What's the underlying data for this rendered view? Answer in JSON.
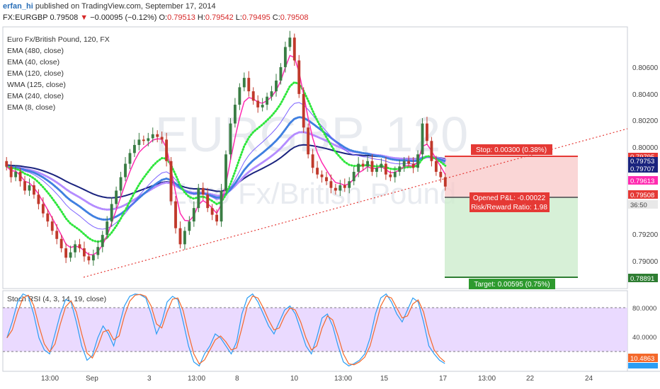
{
  "header": {
    "author": "erfan_hi",
    "published": "published on TradingView.com, September 17, 2014",
    "symbol": "FX:EURGBP",
    "last": "0.79508",
    "arrow": "▼",
    "change": "−0.00095 (−0.12%)",
    "o_label": "O:",
    "o": "0.79513",
    "h_label": "H:",
    "h": "0.79542",
    "l_label": "L:",
    "l": "0.79495",
    "c_label": "C:",
    "c": "0.79508"
  },
  "legend": {
    "title": "Euro Fx/British Pound, 120, FX",
    "items": [
      "EMA (480, close)",
      "EMA (40, close)",
      "EMA (120, close)",
      "WMA (125, close)",
      "EMA (240, close)",
      "EMA (8, close)"
    ]
  },
  "watermark": {
    "symbol": "EURGBP, 120",
    "name": "Euro Fx/British Pound"
  },
  "colors": {
    "up": "#3a7d44",
    "down": "#c0392b",
    "ema480": "#1a237e",
    "ema40": "#7b61ff",
    "ema120": "#3f7fe0",
    "wma125": "#2ee63c",
    "ema240": "#b48cff",
    "ema8": "#ff2bb0",
    "stoch_k": "#2a9df4",
    "stoch_d": "#f4682a",
    "stoch_band": "#e6d4ff"
  },
  "position": {
    "stop_label": "Stop: 0.00300 (0.38%)",
    "pl_label": "Opened P&L: -0.00022",
    "rr_label": "Risk/Reward Ratio: 1.98",
    "target_label": "Target: 0.00595 (0.75%)"
  },
  "price_tags": [
    {
      "text": "0.79795",
      "color": "#e53935"
    },
    {
      "text": "0.79707",
      "color": "#1a237e"
    },
    {
      "text": "0.79613",
      "color": "#ff2bb0"
    },
    {
      "text": "0.79508",
      "color": "#e53935"
    },
    {
      "text": "0.78891",
      "color": "#2e7d32"
    }
  ],
  "partial_tags": [
    "0.79753",
    "36:50"
  ],
  "stoch": {
    "title": "Stoch RSI (4, 3, 14, 19, close)",
    "tags": [
      "10.4863"
    ]
  },
  "chart_data": {
    "type": "candlestick",
    "symbol": "FX:EURGBP",
    "timeframe": "120",
    "price_axis": {
      "ticks": [
        "0.80600",
        "0.80400",
        "0.80200",
        "0.80000",
        "0.79200",
        "0.79000"
      ],
      "range": [
        0.7875,
        0.807
      ]
    },
    "time_axis": {
      "ticks": [
        "13:00",
        "Sep",
        "3",
        "13:00",
        "8",
        "10",
        "13:00",
        "15",
        "17",
        "13:00",
        "22",
        "24"
      ]
    },
    "closes": [
      0.7966,
      0.7958,
      0.7962,
      0.7955,
      0.7948,
      0.7952,
      0.7945,
      0.7938,
      0.7931,
      0.7925,
      0.7918,
      0.7912,
      0.7905,
      0.7898,
      0.7902,
      0.7908,
      0.7905,
      0.7899,
      0.7896,
      0.79,
      0.7906,
      0.7915,
      0.7925,
      0.7938,
      0.7948,
      0.7958,
      0.7968,
      0.7976,
      0.7982,
      0.7986,
      0.7985,
      0.7987,
      0.799,
      0.7988,
      0.7986,
      0.797,
      0.794,
      0.792,
      0.7908,
      0.7918,
      0.7925,
      0.7935,
      0.795,
      0.7945,
      0.7935,
      0.793,
      0.7925,
      0.7948,
      0.7975,
      0.7998,
      0.8012,
      0.8025,
      0.8032,
      0.8022,
      0.8015,
      0.801,
      0.8012,
      0.8018,
      0.8022,
      0.803,
      0.804,
      0.8055,
      0.8062,
      0.8045,
      0.802,
      0.7995,
      0.7975,
      0.7965,
      0.796,
      0.7958,
      0.7955,
      0.795,
      0.7948,
      0.7952,
      0.795,
      0.7955,
      0.7962,
      0.7968,
      0.7966,
      0.797,
      0.7962,
      0.7965,
      0.7968,
      0.796,
      0.7958,
      0.7962,
      0.7966,
      0.797,
      0.7968,
      0.7965,
      0.7975,
      0.7998,
      0.7985,
      0.797,
      0.7962,
      0.7958,
      0.7951
    ],
    "stop": {
      "value": 0.003,
      "percent": 0.38,
      "level": 0.79795
    },
    "target": {
      "value": 0.00595,
      "percent": 0.75,
      "level": 0.78891
    },
    "entry_level": 0.79508,
    "ema_values": {
      "EMA (480, close)": 0.79707,
      "EMA (8, close)": 0.79613
    },
    "stoch_rsi": {
      "title": "Stoch RSI (4, 3, 14, 19, close)",
      "levels": [
        80,
        40
      ],
      "ticks": [
        "80.0000",
        "40.0000"
      ],
      "last": 10.4863,
      "k": [
        40,
        60,
        85,
        95,
        92,
        70,
        40,
        25,
        20,
        45,
        70,
        88,
        85,
        60,
        30,
        12,
        18,
        40,
        55,
        45,
        30,
        55,
        80,
        92,
        95,
        94,
        90,
        70,
        45,
        60,
        85,
        92,
        88,
        60,
        30,
        10,
        5,
        20,
        30,
        45,
        40,
        30,
        20,
        35,
        70,
        90,
        95,
        85,
        70,
        55,
        45,
        60,
        75,
        80,
        70,
        50,
        30,
        20,
        40,
        65,
        70,
        55,
        30,
        10,
        5,
        8,
        12,
        20,
        40,
        70,
        90,
        95,
        85,
        70,
        60,
        75,
        90,
        85,
        60,
        30,
        20,
        12,
        8
      ]
    },
    "trendline": {
      "from_price": 0.789,
      "to_price": 0.8002,
      "style": "dotted"
    }
  }
}
